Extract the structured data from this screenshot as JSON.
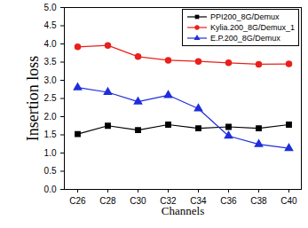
{
  "chart_data": {
    "type": "line",
    "x_label": "Channels",
    "y_label": "Insertion loss",
    "categories": [
      "C26",
      "C28",
      "C30",
      "C32",
      "C34",
      "C36",
      "C38",
      "C40"
    ],
    "series": [
      {
        "name": "PPI200_8G/Demux",
        "color": "#000000",
        "marker": "square",
        "values": [
          1.52,
          1.75,
          1.63,
          1.78,
          1.68,
          1.72,
          1.68,
          1.78
        ]
      },
      {
        "name": "Kylia.200_8G/Demux_1",
        "color": "#e8211c",
        "marker": "circle",
        "values": [
          3.92,
          3.96,
          3.65,
          3.55,
          3.52,
          3.48,
          3.44,
          3.45
        ]
      },
      {
        "name": "E.P.200_8G/Demux",
        "color": "#1e2edc",
        "marker": "triangle",
        "values": [
          2.8,
          2.67,
          2.41,
          2.59,
          2.22,
          1.47,
          1.24,
          1.13
        ]
      }
    ],
    "ylim": [
      0,
      5
    ],
    "yticks": [
      {
        "value": 0,
        "label": "0.0"
      },
      0.5,
      {
        "value": 1,
        "label": "1.0"
      },
      1.5,
      {
        "value": 2,
        "label": "2.0"
      },
      2.5,
      {
        "value": 3,
        "label": "3.0"
      },
      3.5,
      {
        "value": 4,
        "label": "4.0"
      },
      4.5,
      {
        "value": 5,
        "label": "5.0"
      }
    ],
    "grid": false,
    "legend": "upper right"
  }
}
